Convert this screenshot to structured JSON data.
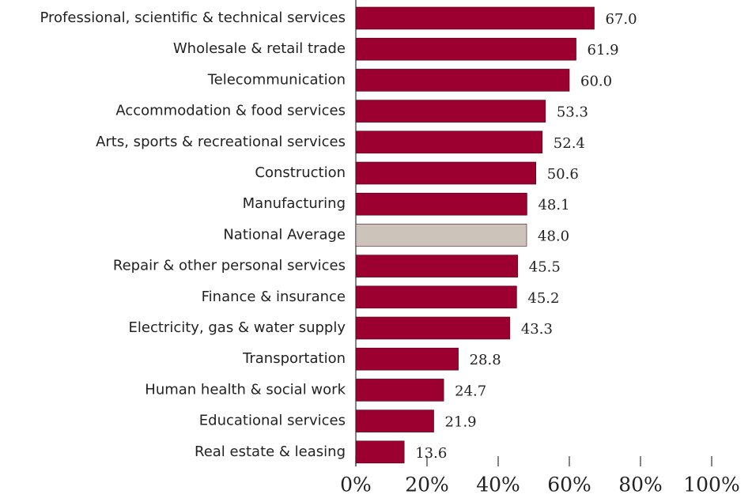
{
  "chart_data": {
    "type": "bar",
    "orientation": "horizontal",
    "categories": [
      "Professional, scientific & technical services",
      "Wholesale & retail trade",
      "Telecommunication",
      "Accommodation & food services",
      "Arts, sports & recreational services",
      "Construction",
      "Manufacturing",
      "National Average",
      "Repair & other personal services",
      "Finance & insurance",
      "Electricity, gas & water supply",
      "Transportation",
      "Human health & social work",
      "Educational services",
      "Real estate & leasing"
    ],
    "values": [
      67.0,
      61.9,
      60.0,
      53.3,
      52.4,
      50.6,
      48.1,
      48.0,
      45.5,
      45.2,
      43.3,
      28.8,
      24.7,
      21.9,
      13.6
    ],
    "value_labels": [
      "67.0",
      "61.9",
      "60.0",
      "53.3",
      "52.4",
      "50.6",
      "48.1",
      "48.0",
      "45.5",
      "45.2",
      "43.3",
      "28.8",
      "24.7",
      "21.9",
      "13.6"
    ],
    "colors": [
      "#9b0030",
      "#9b0030",
      "#9b0030",
      "#9b0030",
      "#9b0030",
      "#9b0030",
      "#9b0030",
      "#ccc4bb",
      "#9b0030",
      "#9b0030",
      "#9b0030",
      "#9b0030",
      "#9b0030",
      "#9b0030",
      "#9b0030"
    ],
    "xlim": [
      0,
      100
    ],
    "xticks": [
      {
        "value": 0,
        "label": "0%"
      },
      {
        "value": 20,
        "label": "20%"
      },
      {
        "value": 40,
        "label": "40%"
      },
      {
        "value": 60,
        "label": "60%"
      },
      {
        "value": 80,
        "label": "80%"
      },
      {
        "value": 100,
        "label": "100%"
      }
    ]
  }
}
